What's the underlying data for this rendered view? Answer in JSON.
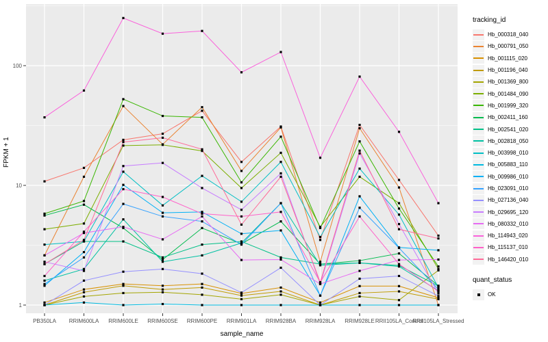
{
  "chart_data": {
    "type": "line",
    "title": "",
    "xlabel": "sample_name",
    "ylabel": "FPKM + 1",
    "y_scale": "log10",
    "y_ticks": [
      "1",
      "10",
      "100"
    ],
    "ylim": [
      1,
      300
    ],
    "grid": "on",
    "panel_bg": "#EBEBEB",
    "grid_color": "#FFFFFF",
    "point_marker": "black-square",
    "legend_position": "right",
    "categories": [
      "PB350LA",
      "RRIM600LA",
      "RRIM600LE",
      "RRIM600SE",
      "RRIM600PE",
      "RRIM901LA",
      "RRIM928BA",
      "RRIM928LA",
      "RRIM928LE",
      "RRII105LA_Control",
      "RRII105LA_Stressed"
    ],
    "legend_title": "tracking_id",
    "series": [
      {
        "name": "Hb_000318_040",
        "color": "#F8766D",
        "values": [
          10.8,
          14,
          24,
          27,
          42,
          15.7,
          31,
          3.5,
          32,
          11.1,
          3.8
        ]
      },
      {
        "name": "Hb_000791_050",
        "color": "#EA8331",
        "values": [
          2.6,
          11.8,
          46,
          22,
          45,
          13.2,
          30.5,
          2.3,
          30,
          9.6,
          1.0
        ]
      },
      {
        "name": "Hb_001115_020",
        "color": "#D89000",
        "values": [
          1.05,
          1.35,
          1.5,
          1.45,
          1.5,
          1.25,
          1.4,
          1.05,
          1.44,
          1.44,
          1.15
        ]
      },
      {
        "name": "Hb_001196_040",
        "color": "#C09B00",
        "values": [
          1.0,
          1.28,
          1.45,
          1.35,
          1.4,
          1.2,
          1.3,
          1.0,
          1.26,
          1.3,
          1.12
        ]
      },
      {
        "name": "Hb_001369_800",
        "color": "#A3A500",
        "values": [
          1.0,
          1.18,
          1.26,
          1.28,
          1.22,
          1.12,
          1.22,
          1.0,
          1.18,
          1.1,
          1.95
        ]
      },
      {
        "name": "Hb_001484_090",
        "color": "#7CAE00",
        "values": [
          4.3,
          4.8,
          21.5,
          21.8,
          19.4,
          9.5,
          18.7,
          4.5,
          11.8,
          7.1,
          2.0
        ]
      },
      {
        "name": "Hb_001999_320",
        "color": "#39B600",
        "values": [
          5.8,
          7.4,
          52.5,
          38,
          37,
          10.6,
          25.5,
          4.4,
          23.3,
          6.4,
          2.1
        ]
      },
      {
        "name": "Hb_002411_160",
        "color": "#00BB4E",
        "values": [
          5.6,
          6.9,
          4.4,
          2.4,
          4.4,
          3.25,
          5.0,
          2.2,
          2.35,
          2.7,
          1.45
        ]
      },
      {
        "name": "Hb_002541_020",
        "color": "#00C087",
        "values": [
          2.2,
          3.4,
          3.4,
          2.5,
          3.2,
          3.4,
          2.5,
          2.2,
          2.25,
          2.14,
          1.44
        ]
      },
      {
        "name": "Hb_002818_050",
        "color": "#00C1A3",
        "values": [
          1.6,
          2.0,
          5.2,
          2.3,
          2.6,
          3.3,
          7.1,
          2.15,
          2.25,
          2.1,
          1.32
        ]
      },
      {
        "name": "Hb_003998_010",
        "color": "#00BFC4",
        "values": [
          3.2,
          3.4,
          13,
          6.8,
          12,
          7.3,
          15.7,
          3.7,
          13.8,
          5.7,
          1.4
        ]
      },
      {
        "name": "Hb_005883_110",
        "color": "#00BAE0",
        "values": [
          1.0,
          1.05,
          1.0,
          1.02,
          1.0,
          1.0,
          1.0,
          1.0,
          1.0,
          1.0,
          1.0
        ]
      },
      {
        "name": "Hb_009986_010",
        "color": "#00B0F6",
        "values": [
          1.45,
          2.77,
          10.1,
          5.9,
          6.0,
          3.94,
          4.2,
          1.2,
          8.1,
          3.03,
          2.87
        ]
      },
      {
        "name": "Hb_023091_010",
        "color": "#35A2FF",
        "values": [
          1.5,
          2.5,
          7.0,
          5.5,
          5.0,
          3.2,
          7.1,
          1.2,
          6.5,
          3.0,
          1.35
        ]
      },
      {
        "name": "Hb_027136_040",
        "color": "#9590FF",
        "values": [
          1.0,
          1.6,
          1.9,
          2.0,
          1.83,
          1.27,
          2.05,
          1.0,
          1.66,
          1.75,
          1.19
        ]
      },
      {
        "name": "Hb_029695_120",
        "color": "#C77CFF",
        "values": [
          2.3,
          1.93,
          14.5,
          15.4,
          9.5,
          6.25,
          12.6,
          1.5,
          18.5,
          4.75,
          1.25
        ]
      },
      {
        "name": "Hb_080332_010",
        "color": "#E76BF3",
        "values": [
          2.6,
          4.0,
          4.5,
          3.54,
          5.5,
          2.38,
          2.4,
          1.5,
          1.93,
          2.38,
          2.4
        ]
      },
      {
        "name": "Hb_114943_020",
        "color": "#FA62DB",
        "values": [
          37,
          62,
          250,
          185,
          195,
          88,
          130,
          17,
          81,
          28,
          7.1
        ]
      },
      {
        "name": "Hb_115137_010",
        "color": "#FF61C9",
        "values": [
          1.75,
          4.1,
          9.3,
          8.0,
          5.8,
          5.5,
          6.0,
          1.55,
          5.5,
          2.2,
          1.3
        ]
      },
      {
        "name": "Hb_146420_010",
        "color": "#FF6A98",
        "values": [
          2.2,
          3.5,
          23,
          25,
          20,
          4.7,
          11.8,
          1.55,
          19.5,
          4.3,
          3.6
        ]
      }
    ],
    "quant_legend": {
      "title": "quant_status",
      "items": [
        {
          "label": "OK",
          "marker": "black-square"
        }
      ]
    }
  }
}
